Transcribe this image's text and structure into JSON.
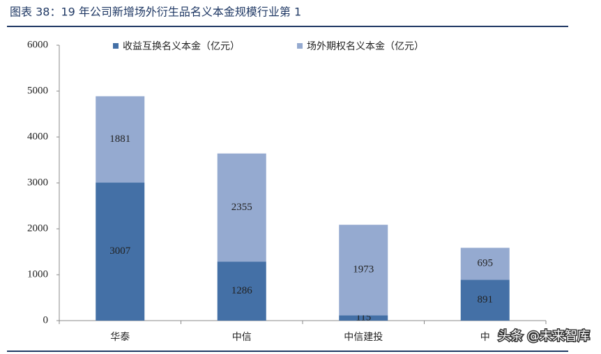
{
  "chart_data": {
    "type": "stacked_bar",
    "title": "图表 38：19 年公司新增场外衍生品名义本金规模行业第 1",
    "categories": [
      "华泰",
      "中信",
      "中信建投",
      "中"
    ],
    "series": [
      {
        "name": "收益互换名义本金（亿元）",
        "color": "#4470a6",
        "values": [
          3007,
          1286,
          115,
          891
        ]
      },
      {
        "name": "场外期权名义本金（亿元）",
        "color": "#95aad0",
        "values": [
          1881,
          2355,
          1973,
          695
        ]
      }
    ],
    "ylim": [
      0,
      6000
    ],
    "yticks": [
      0,
      1000,
      2000,
      3000,
      4000,
      5000,
      6000
    ],
    "legend": "top",
    "watermark": "头条 @未来智库"
  }
}
